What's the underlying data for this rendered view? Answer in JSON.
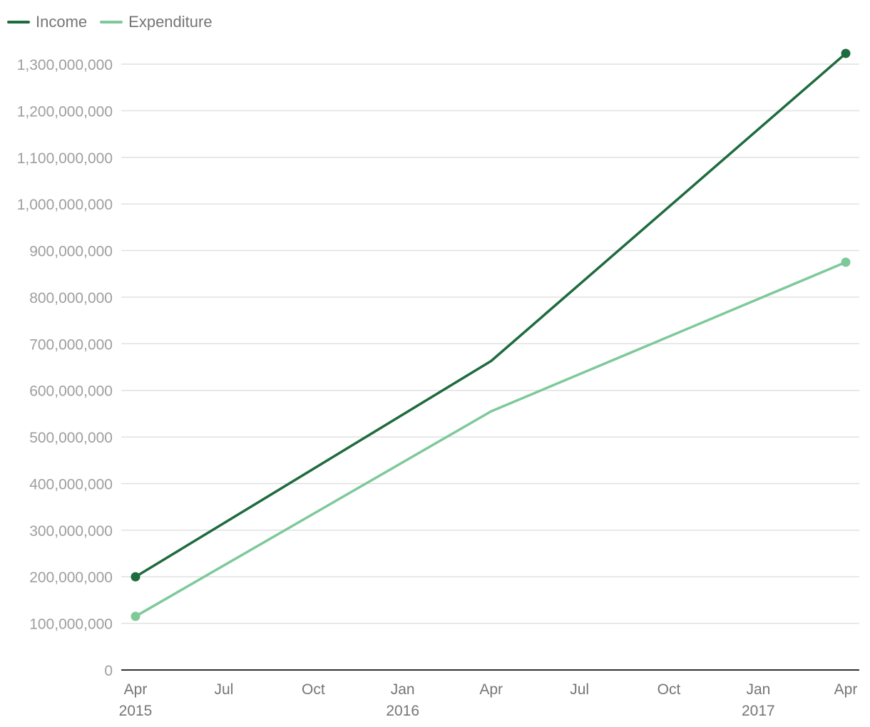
{
  "chart_data": {
    "type": "line",
    "title": "",
    "xlabel": "",
    "ylabel": "",
    "x_range": [
      "2015-04-01",
      "2017-04-01"
    ],
    "ylim": [
      0,
      1300000000
    ],
    "y_ticks": [
      "0",
      "100,000,000",
      "200,000,000",
      "300,000,000",
      "400,000,000",
      "500,000,000",
      "600,000,000",
      "700,000,000",
      "800,000,000",
      "900,000,000",
      "1,000,000,000",
      "1,100,000,000",
      "1,200,000,000",
      "1,300,000,000"
    ],
    "x_ticks": [
      {
        "date": "2015-04-01",
        "label": "Apr",
        "year": "2015"
      },
      {
        "date": "2015-07-01",
        "label": "Jul",
        "year": ""
      },
      {
        "date": "2015-10-01",
        "label": "Oct",
        "year": ""
      },
      {
        "date": "2016-01-01",
        "label": "Jan",
        "year": "2016"
      },
      {
        "date": "2016-04-01",
        "label": "Apr",
        "year": ""
      },
      {
        "date": "2016-07-01",
        "label": "Jul",
        "year": ""
      },
      {
        "date": "2016-10-01",
        "label": "Oct",
        "year": ""
      },
      {
        "date": "2017-01-01",
        "label": "Jan",
        "year": "2017"
      },
      {
        "date": "2017-04-01",
        "label": "Apr",
        "year": ""
      }
    ],
    "grid": true,
    "legend_position": "top-left",
    "series": [
      {
        "name": "Income",
        "color": "#1e6b3e",
        "points": [
          {
            "x": "2015-04-01",
            "y": 200000000
          },
          {
            "x": "2016-04-01",
            "y": 663000000
          },
          {
            "x": "2017-04-01",
            "y": 1323000000
          }
        ]
      },
      {
        "name": "Expenditure",
        "color": "#7ec99a",
        "points": [
          {
            "x": "2015-04-01",
            "y": 115000000
          },
          {
            "x": "2016-04-01",
            "y": 555000000
          },
          {
            "x": "2017-04-01",
            "y": 875000000
          }
        ]
      }
    ]
  }
}
